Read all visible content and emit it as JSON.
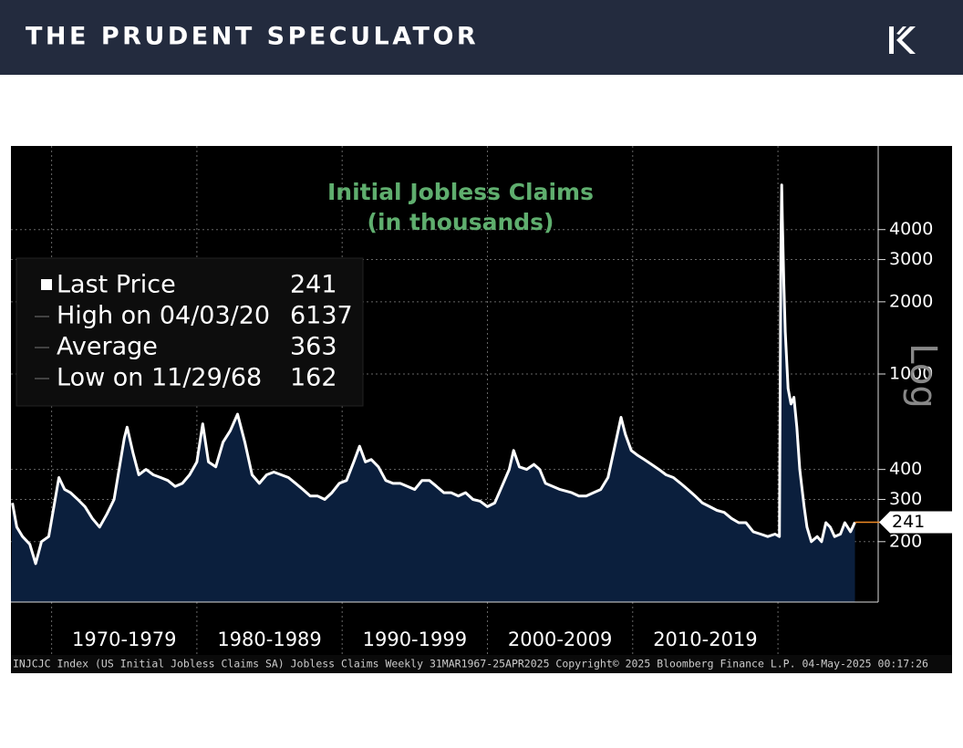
{
  "header": {
    "title": "THE PRUDENT SPECULATOR"
  },
  "chart_data": {
    "type": "area",
    "title": "Initial Jobless Claims",
    "subtitle": "(in thousands)",
    "y_scale_label": "Log",
    "log_scale": true,
    "grid": true,
    "line_color": "#ffffff",
    "fill_color": "#0b1f3d",
    "legend": [
      {
        "label": "Last Price",
        "value": 241
      },
      {
        "label": "High on 04/03/20",
        "value": 6137
      },
      {
        "label": "Average",
        "value": 363
      },
      {
        "label": "Low on 11/29/68",
        "value": 162
      }
    ],
    "source": "INJCJC Index (US Initial Jobless Claims SA) Jobless Claims  Weekly 31MAR1967-25APR2025 Copyright© 2025 Bloomberg Finance L.P. 04-May-2025 00:17:26",
    "xlim": [
      1967.2,
      2026.9
    ],
    "xticks": [
      {
        "value": 1970,
        "label": "1970-1979"
      },
      {
        "value": 1980,
        "label": "1980-1989"
      },
      {
        "value": 1990,
        "label": "1990-1999"
      },
      {
        "value": 2000,
        "label": "2000-2009"
      },
      {
        "value": 2010,
        "label": "2010-2019"
      },
      {
        "value": 2020,
        "label": null
      }
    ],
    "ylim": [
      112,
      8930
    ],
    "yticks": [
      200,
      300,
      400,
      1000,
      2000,
      3000,
      4000
    ],
    "x": [
      1967.3,
      1967.6,
      1968.0,
      1968.5,
      1968.9,
      1969.3,
      1969.8,
      1970.2,
      1970.5,
      1970.9,
      1971.3,
      1971.8,
      1972.3,
      1972.8,
      1973.3,
      1973.8,
      1974.3,
      1974.7,
      1975.0,
      1975.2,
      1975.6,
      1976.0,
      1976.5,
      1977.0,
      1977.5,
      1978.0,
      1978.5,
      1979.0,
      1979.5,
      1980.0,
      1980.4,
      1980.8,
      1981.3,
      1981.8,
      1982.3,
      1982.8,
      1983.3,
      1983.8,
      1984.3,
      1984.8,
      1985.3,
      1985.8,
      1986.3,
      1986.8,
      1987.3,
      1987.8,
      1988.3,
      1988.8,
      1989.3,
      1989.8,
      1990.3,
      1990.8,
      1991.2,
      1991.6,
      1992.0,
      1992.5,
      1993.0,
      1993.5,
      1994.0,
      1994.5,
      1995.0,
      1995.5,
      1996.0,
      1996.5,
      1997.0,
      1997.5,
      1998.0,
      1998.5,
      1999.0,
      1999.5,
      2000.0,
      2000.5,
      2001.0,
      2001.5,
      2001.8,
      2002.2,
      2002.7,
      2003.2,
      2003.6,
      2004.0,
      2004.5,
      2005.0,
      2005.8,
      2006.3,
      2006.8,
      2007.3,
      2007.8,
      2008.3,
      2008.8,
      2009.2,
      2009.5,
      2009.9,
      2010.3,
      2010.8,
      2011.3,
      2011.8,
      2012.3,
      2012.8,
      2013.3,
      2013.8,
      2014.3,
      2014.8,
      2015.3,
      2015.8,
      2016.3,
      2016.8,
      2017.3,
      2017.8,
      2018.3,
      2018.8,
      2019.3,
      2019.8,
      2020.1,
      2020.2,
      2020.26,
      2020.3,
      2020.4,
      2020.5,
      2020.7,
      2020.9,
      2021.1,
      2021.3,
      2021.5,
      2021.8,
      2022.0,
      2022.3,
      2022.7,
      2023.0,
      2023.3,
      2023.6,
      2023.9,
      2024.3,
      2024.6,
      2025.0,
      2025.3
    ],
    "series": [
      {
        "name": "Last Price",
        "values": [
          290,
          230,
          210,
          195,
          162,
          200,
          210,
          290,
          370,
          330,
          320,
          300,
          280,
          250,
          230,
          260,
          300,
          420,
          540,
          600,
          470,
          380,
          400,
          380,
          370,
          360,
          340,
          350,
          380,
          430,
          620,
          430,
          410,
          520,
          580,
          680,
          520,
          380,
          350,
          380,
          390,
          380,
          370,
          350,
          330,
          310,
          310,
          300,
          320,
          350,
          360,
          430,
          500,
          430,
          440,
          410,
          360,
          350,
          350,
          340,
          330,
          360,
          360,
          340,
          320,
          320,
          310,
          320,
          300,
          295,
          280,
          290,
          340,
          400,
          480,
          410,
          400,
          420,
          400,
          350,
          340,
          330,
          320,
          310,
          310,
          320,
          330,
          370,
          510,
          660,
          560,
          480,
          460,
          440,
          420,
          400,
          380,
          370,
          350,
          330,
          310,
          290,
          280,
          270,
          265,
          250,
          240,
          240,
          220,
          215,
          210,
          215,
          210,
          3300,
          6137,
          4400,
          2400,
          1500,
          870,
          750,
          800,
          600,
          400,
          280,
          230,
          200,
          210,
          200,
          240,
          230,
          210,
          215,
          240,
          220,
          241
        ]
      }
    ]
  }
}
